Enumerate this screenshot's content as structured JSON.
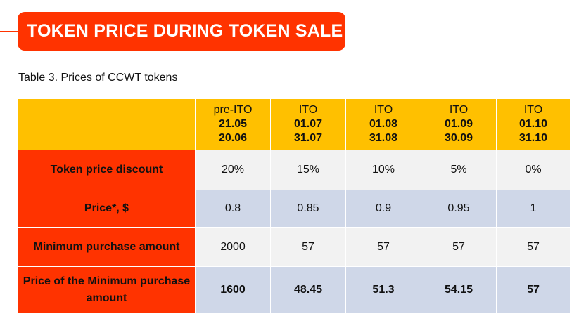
{
  "header": {
    "title": "TOKEN PRICE DURING TOKEN SALE"
  },
  "table": {
    "caption": "Table 3. Prices of CCWT tokens",
    "columns": [
      {
        "phase": "pre-ITO",
        "start": "21.05",
        "end": "20.06"
      },
      {
        "phase": "ITO",
        "start": "01.07",
        "end": "31.07"
      },
      {
        "phase": "ITO",
        "start": "01.08",
        "end": "31.08"
      },
      {
        "phase": "ITO",
        "start": "01.09",
        "end": "30.09"
      },
      {
        "phase": "ITO",
        "start": "01.10",
        "end": "31.10"
      }
    ],
    "rows": [
      {
        "label": "Token price discount",
        "values": [
          "20%",
          "15%",
          "10%",
          "5%",
          "0%"
        ]
      },
      {
        "label": "Price*, $",
        "values": [
          "0.8",
          "0.85",
          "0.9",
          "0.95",
          "1"
        ]
      },
      {
        "label": "Minimum purchase amount",
        "values": [
          "2000",
          "57",
          "57",
          "57",
          "57"
        ]
      },
      {
        "label": "Price of the Minimum purchase amount",
        "values": [
          "1600",
          "48.45",
          "51.3",
          "54.15",
          "57"
        ]
      }
    ]
  },
  "colors": {
    "accent_red": "#ff3300",
    "header_yellow": "#ffc000",
    "row_light": "#f2f2f2",
    "row_blue": "#cfd7e8"
  }
}
